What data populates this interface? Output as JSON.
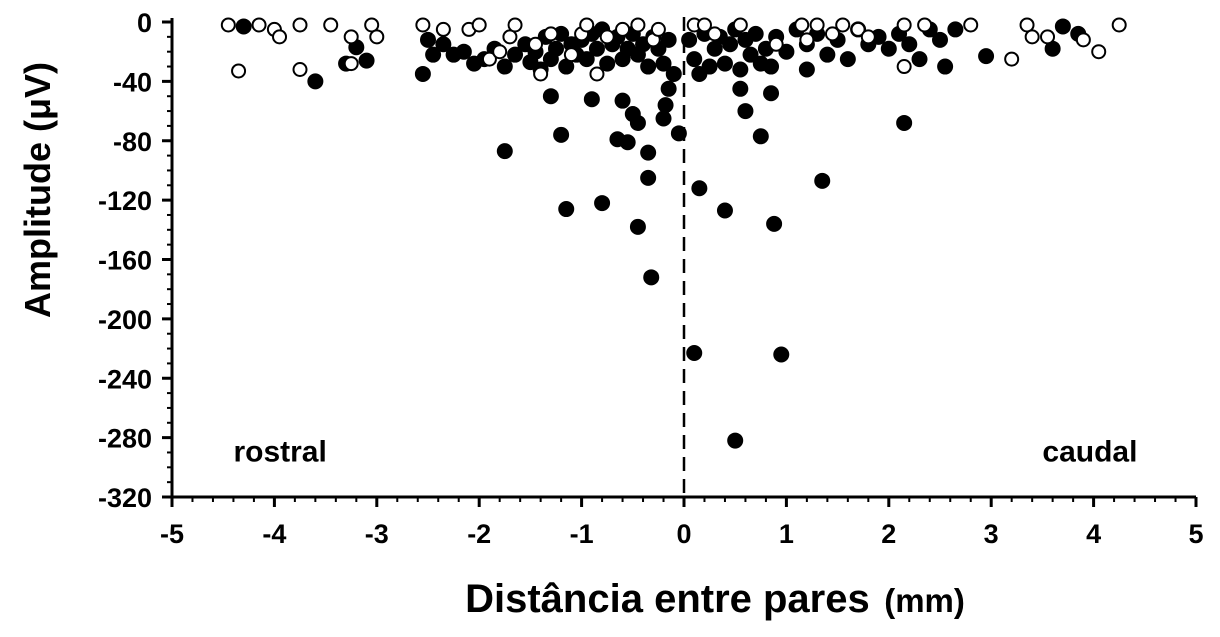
{
  "chart_data": {
    "type": "scatter",
    "xlabel": "Distância entre pares",
    "xlabel_unit": "(mm)",
    "ylabel": "Amplitude (μV)",
    "xlim": [
      -5,
      5
    ],
    "ylim": [
      -320,
      0
    ],
    "x_ticks": [
      -5,
      -4,
      -3,
      -2,
      -1,
      0,
      1,
      2,
      3,
      4,
      5
    ],
    "y_ticks": [
      0,
      -40,
      -80,
      -120,
      -160,
      -200,
      -240,
      -280,
      -320
    ],
    "grid": false,
    "reference_line": {
      "x": 0,
      "style": "dashed"
    },
    "annotations": [
      {
        "text": "rostral",
        "x": -4.4,
        "y": -296
      },
      {
        "text": "caudal",
        "x": 3.5,
        "y": -296
      }
    ],
    "series": [
      {
        "marker": "filled-circle",
        "color": "#000000",
        "points": [
          [
            -4.3,
            -3
          ],
          [
            -3.6,
            -40
          ],
          [
            -3.3,
            -28
          ],
          [
            -3.1,
            -26
          ],
          [
            -3.2,
            -17
          ],
          [
            -2.55,
            -35
          ],
          [
            -2.5,
            -12
          ],
          [
            -2.45,
            -22
          ],
          [
            -2.35,
            -15
          ],
          [
            -2.25,
            -22
          ],
          [
            -2.15,
            -20
          ],
          [
            -2.05,
            -28
          ],
          [
            -1.95,
            -25
          ],
          [
            -1.85,
            -18
          ],
          [
            -1.75,
            -30
          ],
          [
            -1.65,
            -22
          ],
          [
            -1.55,
            -15
          ],
          [
            -1.5,
            -27
          ],
          [
            -1.45,
            -20
          ],
          [
            -1.4,
            -32
          ],
          [
            -1.35,
            -10
          ],
          [
            -1.3,
            -25
          ],
          [
            -1.25,
            -18
          ],
          [
            -1.2,
            -8
          ],
          [
            -1.15,
            -30
          ],
          [
            -1.1,
            -15
          ],
          [
            -1.05,
            -22
          ],
          [
            -1.0,
            -12
          ],
          [
            -0.95,
            -25
          ],
          [
            -0.9,
            -8
          ],
          [
            -0.85,
            -18
          ],
          [
            -0.8,
            -5
          ],
          [
            -0.75,
            -28
          ],
          [
            -0.7,
            -15
          ],
          [
            -0.65,
            -10
          ],
          [
            -0.6,
            -25
          ],
          [
            -0.55,
            -18
          ],
          [
            -0.5,
            -8
          ],
          [
            -0.45,
            -22
          ],
          [
            -0.4,
            -15
          ],
          [
            -0.35,
            -30
          ],
          [
            -0.3,
            -10
          ],
          [
            -0.25,
            -18
          ],
          [
            -0.2,
            -28
          ],
          [
            -0.15,
            -12
          ],
          [
            -0.1,
            -35
          ],
          [
            -1.75,
            -87
          ],
          [
            -1.3,
            -50
          ],
          [
            -1.2,
            -76
          ],
          [
            -1.15,
            -126
          ],
          [
            -0.9,
            -52
          ],
          [
            -0.8,
            -122
          ],
          [
            -0.65,
            -79
          ],
          [
            -0.6,
            -53
          ],
          [
            -0.55,
            -81
          ],
          [
            -0.5,
            -62
          ],
          [
            -0.45,
            -68
          ],
          [
            -0.45,
            -138
          ],
          [
            -0.35,
            -88
          ],
          [
            -0.35,
            -105
          ],
          [
            -0.32,
            -172
          ],
          [
            -0.2,
            -65
          ],
          [
            -0.18,
            -56
          ],
          [
            -0.15,
            -45
          ],
          [
            -0.05,
            -75
          ],
          [
            0.05,
            -12
          ],
          [
            0.1,
            -25
          ],
          [
            0.15,
            -35
          ],
          [
            0.2,
            -8
          ],
          [
            0.25,
            -30
          ],
          [
            0.3,
            -18
          ],
          [
            0.35,
            -10
          ],
          [
            0.4,
            -28
          ],
          [
            0.45,
            -15
          ],
          [
            0.5,
            -5
          ],
          [
            0.55,
            -32
          ],
          [
            0.6,
            -12
          ],
          [
            0.65,
            -22
          ],
          [
            0.7,
            -8
          ],
          [
            0.75,
            -28
          ],
          [
            0.8,
            -18
          ],
          [
            0.85,
            -30
          ],
          [
            0.9,
            -10
          ],
          [
            1.0,
            -20
          ],
          [
            1.1,
            -5
          ],
          [
            1.2,
            -15
          ],
          [
            1.3,
            -8
          ],
          [
            1.4,
            -22
          ],
          [
            1.5,
            -12
          ],
          [
            1.6,
            -25
          ],
          [
            1.7,
            -5
          ],
          [
            1.8,
            -15
          ],
          [
            1.9,
            -10
          ],
          [
            2.0,
            -18
          ],
          [
            2.1,
            -8
          ],
          [
            2.2,
            -15
          ],
          [
            2.3,
            -25
          ],
          [
            2.4,
            -5
          ],
          [
            2.5,
            -12
          ],
          [
            2.55,
            -30
          ],
          [
            2.65,
            -5
          ],
          [
            2.95,
            -23
          ],
          [
            3.6,
            -18
          ],
          [
            3.7,
            -3
          ],
          [
            3.85,
            -8
          ],
          [
            0.1,
            -223
          ],
          [
            0.15,
            -112
          ],
          [
            0.4,
            -127
          ],
          [
            0.5,
            -282
          ],
          [
            0.55,
            -45
          ],
          [
            0.6,
            -60
          ],
          [
            0.75,
            -77
          ],
          [
            0.85,
            -48
          ],
          [
            0.88,
            -136
          ],
          [
            0.95,
            -224
          ],
          [
            1.2,
            -32
          ],
          [
            1.35,
            -107
          ],
          [
            2.15,
            -68
          ]
        ]
      },
      {
        "marker": "open-circle",
        "color": "#000000",
        "points": [
          [
            -4.45,
            -2
          ],
          [
            -4.35,
            -33
          ],
          [
            -4.15,
            -2
          ],
          [
            -4.0,
            -5
          ],
          [
            -3.95,
            -10
          ],
          [
            -3.75,
            -2
          ],
          [
            -3.75,
            -32
          ],
          [
            -3.45,
            -2
          ],
          [
            -3.25,
            -10
          ],
          [
            -3.25,
            -28
          ],
          [
            -3.05,
            -2
          ],
          [
            -3.0,
            -10
          ],
          [
            -2.55,
            -2
          ],
          [
            -2.35,
            -5
          ],
          [
            -2.1,
            -5
          ],
          [
            -2.0,
            -2
          ],
          [
            -1.9,
            -25
          ],
          [
            -1.8,
            -20
          ],
          [
            -1.7,
            -10
          ],
          [
            -1.65,
            -2
          ],
          [
            -1.45,
            -15
          ],
          [
            -1.4,
            -35
          ],
          [
            -1.3,
            -8
          ],
          [
            -1.1,
            -22
          ],
          [
            -1.0,
            -8
          ],
          [
            -0.95,
            -2
          ],
          [
            -0.85,
            -35
          ],
          [
            -0.75,
            -10
          ],
          [
            -0.6,
            -5
          ],
          [
            -0.45,
            -2
          ],
          [
            -0.3,
            -12
          ],
          [
            -0.25,
            -5
          ],
          [
            0.1,
            -2
          ],
          [
            0.2,
            -2
          ],
          [
            0.3,
            -8
          ],
          [
            0.55,
            -2
          ],
          [
            0.9,
            -15
          ],
          [
            1.15,
            -2
          ],
          [
            1.2,
            -12
          ],
          [
            1.3,
            -2
          ],
          [
            1.45,
            -8
          ],
          [
            1.55,
            -2
          ],
          [
            1.7,
            -5
          ],
          [
            1.8,
            -10
          ],
          [
            2.15,
            -2
          ],
          [
            2.15,
            -30
          ],
          [
            2.35,
            -2
          ],
          [
            2.8,
            -2
          ],
          [
            3.2,
            -25
          ],
          [
            3.35,
            -2
          ],
          [
            3.4,
            -10
          ],
          [
            3.55,
            -10
          ],
          [
            3.9,
            -12
          ],
          [
            4.05,
            -20
          ],
          [
            4.25,
            -2
          ]
        ]
      }
    ]
  }
}
